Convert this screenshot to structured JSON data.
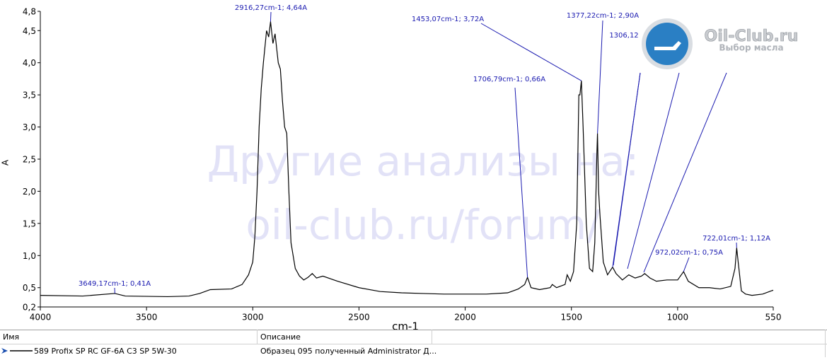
{
  "chart_data": {
    "type": "line",
    "x_label": "cm-1",
    "y_label": "A",
    "xlim": [
      4000,
      550
    ],
    "ylim": [
      0.2,
      4.8
    ],
    "xticks": [
      4000,
      3500,
      3000,
      2500,
      2000,
      1500,
      1000,
      550
    ],
    "yticks": [
      {
        "value": 0.2,
        "label": "0,2"
      },
      {
        "value": 0.5,
        "label": "0,5"
      },
      {
        "value": 1.0,
        "label": "1,0"
      },
      {
        "value": 1.5,
        "label": "1,5"
      },
      {
        "value": 2.0,
        "label": "2,0"
      },
      {
        "value": 2.5,
        "label": "2,5"
      },
      {
        "value": 3.0,
        "label": "3,0"
      },
      {
        "value": 3.5,
        "label": "3,5"
      },
      {
        "value": 4.0,
        "label": "4,0"
      },
      {
        "value": 4.5,
        "label": "4,5"
      },
      {
        "value": 4.8,
        "label": "4,8"
      }
    ],
    "x": [
      4000,
      3800,
      3649.17,
      3600,
      3400,
      3300,
      3250,
      3200,
      3100,
      3050,
      3020,
      3000,
      2990,
      2980,
      2970,
      2960,
      2950,
      2935,
      2925,
      2916.27,
      2905,
      2895,
      2880,
      2870,
      2860,
      2850,
      2840,
      2830,
      2820,
      2800,
      2780,
      2760,
      2740,
      2720,
      2700,
      2670,
      2600,
      2500,
      2400,
      2300,
      2200,
      2100,
      2000,
      1900,
      1800,
      1750,
      1720,
      1706.79,
      1690,
      1650,
      1600,
      1590,
      1570,
      1530,
      1520,
      1505,
      1490,
      1475,
      1465,
      1460,
      1453.07,
      1445,
      1430,
      1415,
      1400,
      1390,
      1380,
      1377.22,
      1372,
      1365,
      1350,
      1330,
      1306.12,
      1290,
      1260,
      1230,
      1200,
      1170,
      1155,
      1130,
      1100,
      1050,
      1000,
      972.02,
      950,
      900,
      850,
      800,
      750,
      730,
      722.01,
      715,
      700,
      680,
      650,
      600,
      560,
      550
    ],
    "series": [
      {
        "name": "589 Profix SP RC GF-6A C3 SP 5W-30",
        "color": "#000000",
        "values": [
          0.38,
          0.37,
          0.41,
          0.37,
          0.36,
          0.37,
          0.41,
          0.47,
          0.48,
          0.55,
          0.7,
          0.9,
          1.3,
          2.0,
          3.0,
          3.6,
          4.0,
          4.5,
          4.4,
          4.64,
          4.3,
          4.45,
          4.0,
          3.9,
          3.4,
          3.0,
          2.9,
          2.0,
          1.2,
          0.8,
          0.68,
          0.62,
          0.66,
          0.72,
          0.65,
          0.68,
          0.6,
          0.5,
          0.44,
          0.42,
          0.41,
          0.4,
          0.4,
          0.4,
          0.42,
          0.48,
          0.55,
          0.66,
          0.5,
          0.47,
          0.5,
          0.55,
          0.5,
          0.55,
          0.7,
          0.6,
          0.75,
          1.5,
          3.5,
          3.5,
          3.72,
          3.0,
          1.5,
          0.8,
          0.75,
          1.2,
          2.6,
          2.9,
          2.0,
          1.6,
          0.9,
          0.7,
          0.82,
          0.72,
          0.62,
          0.7,
          0.65,
          0.68,
          0.72,
          0.65,
          0.6,
          0.62,
          0.62,
          0.75,
          0.6,
          0.5,
          0.5,
          0.48,
          0.52,
          0.8,
          1.12,
          0.9,
          0.45,
          0.4,
          0.38,
          0.4,
          0.45,
          0.46
        ]
      }
    ],
    "annotations": [
      {
        "text": "3649,17cm-1; 0,41A",
        "x": 3649.17,
        "y": 0.41
      },
      {
        "text": "2916,27cm-1; 4,64A",
        "x": 2916.27,
        "y": 4.64
      },
      {
        "text": "1453,07cm-1; 3,72A",
        "x": 1453.07,
        "y": 3.72
      },
      {
        "text": "1706,79cm-1; 0,66A",
        "x": 1706.79,
        "y": 0.66
      },
      {
        "text": "1377,22cm-1; 2,90A",
        "x": 1377.22,
        "y": 2.9
      },
      {
        "text": "1306,12",
        "x": 1306.12,
        "y": 0.82
      },
      {
        "text": "972,02cm-1; 0,75A",
        "x": 972.02,
        "y": 0.75
      },
      {
        "text": "722,01cm-1; 1,12A",
        "x": 722.01,
        "y": 1.12
      }
    ]
  },
  "watermark": [
    "Другие анализы на:",
    "oil-club.ru/forum/"
  ],
  "logo": {
    "title": "Oil-Club.ru",
    "subtitle": "Выбор масла"
  },
  "table": {
    "headers": [
      "Имя",
      "Описание"
    ],
    "description": "Образец 095 полученный Administrator Д..."
  }
}
